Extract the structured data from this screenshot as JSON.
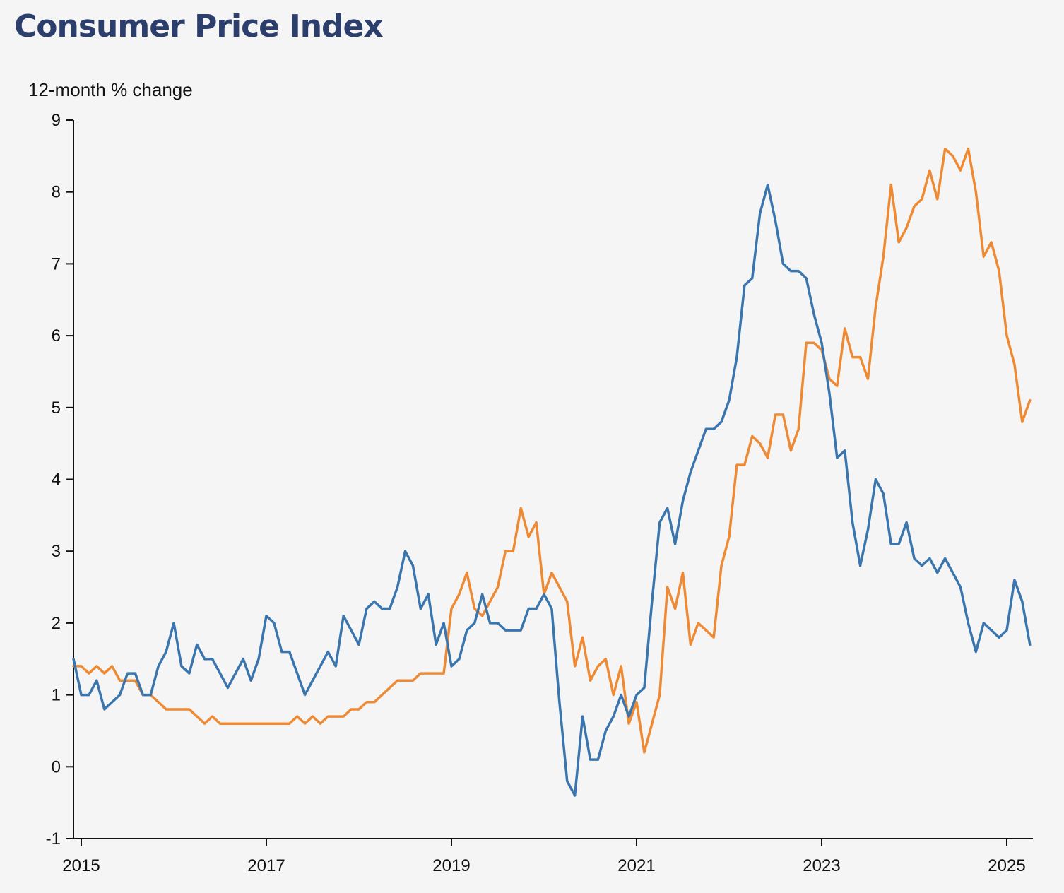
{
  "chart_data": {
    "type": "line",
    "title": "Consumer Price Index",
    "ylabel": "12-month % change",
    "xlabel": "",
    "ylim": [
      -1,
      9
    ],
    "yticks": [
      "-1",
      "0",
      "1",
      "2",
      "3",
      "4",
      "5",
      "6",
      "7",
      "8",
      "9"
    ],
    "xticks": [
      "2015",
      "2017",
      "2019",
      "2021",
      "2023",
      "2025"
    ],
    "x_start": "2014-12",
    "x_frequency": "monthly",
    "grid": false,
    "series": [
      {
        "color": "#3a76ad",
        "values": [
          1.5,
          1.0,
          1.0,
          1.2,
          0.8,
          0.9,
          1.0,
          1.3,
          1.3,
          1.0,
          1.0,
          1.4,
          1.6,
          2.0,
          1.4,
          1.3,
          1.7,
          1.5,
          1.5,
          1.3,
          1.1,
          1.3,
          1.5,
          1.2,
          1.5,
          2.1,
          2.0,
          1.6,
          1.6,
          1.3,
          1.0,
          1.2,
          1.4,
          1.6,
          1.4,
          2.1,
          1.9,
          1.7,
          2.2,
          2.3,
          2.2,
          2.2,
          2.5,
          3.0,
          2.8,
          2.2,
          2.4,
          1.7,
          2.0,
          1.4,
          1.5,
          1.9,
          2.0,
          2.4,
          2.0,
          2.0,
          1.9,
          1.9,
          1.9,
          2.2,
          2.2,
          2.4,
          2.2,
          0.9,
          -0.2,
          -0.4,
          0.7,
          0.1,
          0.1,
          0.5,
          0.7,
          1.0,
          0.7,
          1.0,
          1.1,
          2.3,
          3.4,
          3.6,
          3.1,
          3.7,
          4.1,
          4.4,
          4.7,
          4.7,
          4.8,
          5.1,
          5.7,
          6.7,
          6.8,
          7.7,
          8.1,
          7.6,
          7.0,
          6.9,
          6.9,
          6.8,
          6.3,
          5.9,
          5.2,
          4.3,
          4.4,
          3.4,
          2.8,
          3.3,
          4.0,
          3.8,
          3.1,
          3.1,
          3.4,
          2.9,
          2.8,
          2.9,
          2.7,
          2.9,
          2.7,
          2.5,
          2.0,
          1.6,
          2.0,
          1.9,
          1.8,
          1.9,
          2.6,
          2.3,
          1.7
        ]
      },
      {
        "color": "#ef8a34",
        "values": [
          1.4,
          1.4,
          1.3,
          1.4,
          1.3,
          1.4,
          1.2,
          1.2,
          1.2,
          1.0,
          1.0,
          0.9,
          0.8,
          0.8,
          0.8,
          0.8,
          0.7,
          0.6,
          0.7,
          0.6,
          0.6,
          0.6,
          0.6,
          0.6,
          0.6,
          0.6,
          0.6,
          0.6,
          0.6,
          0.7,
          0.6,
          0.7,
          0.6,
          0.7,
          0.7,
          0.7,
          0.8,
          0.8,
          0.9,
          0.9,
          1.0,
          1.1,
          1.2,
          1.2,
          1.2,
          1.3,
          1.3,
          1.3,
          1.3,
          2.2,
          2.4,
          2.7,
          2.2,
          2.1,
          2.3,
          2.5,
          3.0,
          3.0,
          3.6,
          3.2,
          3.4,
          2.4,
          2.7,
          2.5,
          2.3,
          1.4,
          1.8,
          1.2,
          1.4,
          1.5,
          1.0,
          1.4,
          0.6,
          0.9,
          0.2,
          0.6,
          1.0,
          2.5,
          2.2,
          2.7,
          1.7,
          2.0,
          1.9,
          1.8,
          2.8,
          3.2,
          4.2,
          4.2,
          4.6,
          4.5,
          4.3,
          4.9,
          4.9,
          4.4,
          4.7,
          5.9,
          5.9,
          5.8,
          5.4,
          5.3,
          6.1,
          5.7,
          5.7,
          5.4,
          6.4,
          7.1,
          8.1,
          7.3,
          7.5,
          7.8,
          7.9,
          8.3,
          7.9,
          8.6,
          8.5,
          8.3,
          8.6,
          8.0,
          7.1,
          7.3,
          6.9,
          6.0,
          5.6,
          4.8,
          5.1
        ]
      }
    ]
  }
}
